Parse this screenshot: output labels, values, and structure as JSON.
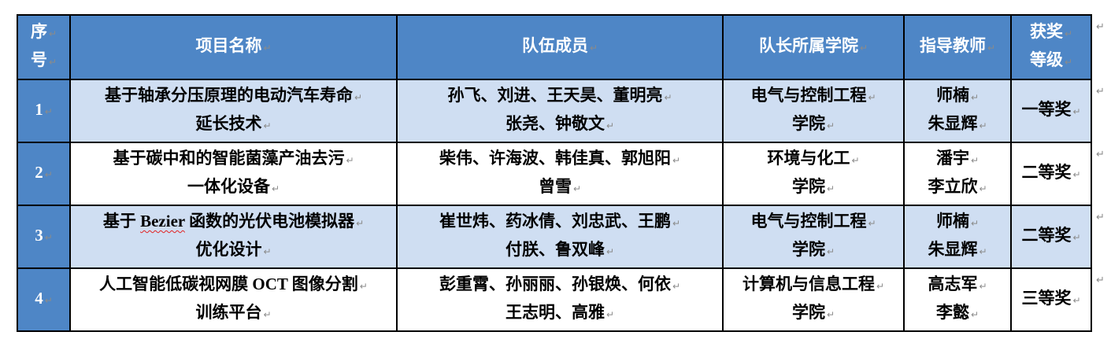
{
  "colors": {
    "header_bg": "#4e86c6",
    "header_text": "#ffffff",
    "row_alt_bg": "#cfdef2",
    "row_bg": "#ffffff",
    "border": "#000000",
    "body_text": "#000000",
    "mark": "#8b8b8b",
    "spell_underline": "#e22222"
  },
  "formatting_marks": {
    "line_break": "↵",
    "row_end": "↵"
  },
  "spellcheck": {
    "misspelled_words": [
      "Bezier"
    ]
  },
  "table": {
    "headers": [
      {
        "lines": [
          "序",
          "号"
        ]
      },
      {
        "lines": [
          "项目名称"
        ]
      },
      {
        "lines": [
          "队伍成员"
        ]
      },
      {
        "lines": [
          "队长所属学院"
        ]
      },
      {
        "lines": [
          "指导教师"
        ]
      },
      {
        "lines": [
          "获奖",
          "等级"
        ]
      }
    ],
    "rows": [
      {
        "num": "1",
        "project": [
          "基于轴承分压原理的电动汽车寿命",
          "延长技术"
        ],
        "members": [
          "孙飞、刘进、王天昊、董明亮",
          "张尧、钟敬文"
        ],
        "college": [
          "电气与控制工程",
          "学院"
        ],
        "advisors": [
          "师楠",
          "朱显辉"
        ],
        "award": "一等奖"
      },
      {
        "num": "2",
        "project": [
          "基于碳中和的智能菌藻产油去污",
          "一体化设备"
        ],
        "members": [
          "柴伟、许海波、韩佳真、郭旭阳",
          "曾雪"
        ],
        "college": [
          "环境与化工",
          "学院"
        ],
        "advisors": [
          "潘宇",
          "李立欣"
        ],
        "award": "二等奖"
      },
      {
        "num": "3",
        "project": [
          "基于 Bezier 函数的光伏电池模拟器",
          "优化设计"
        ],
        "members": [
          "崔世炜、药冰倩、刘忠武、王鹏",
          "付朕、鲁双峰"
        ],
        "college": [
          "电气与控制工程",
          "学院"
        ],
        "advisors": [
          "师楠",
          "朱显辉"
        ],
        "award": "二等奖"
      },
      {
        "num": "4",
        "project": [
          "人工智能低碳视网膜 OCT 图像分割",
          "训练平台"
        ],
        "members": [
          "彭重霄、孙丽丽、孙银焕、何依",
          "王志明、高雅"
        ],
        "college": [
          "计算机与信息工程",
          "学院"
        ],
        "advisors": [
          "高志军",
          "李懿"
        ],
        "award": "三等奖"
      }
    ]
  }
}
